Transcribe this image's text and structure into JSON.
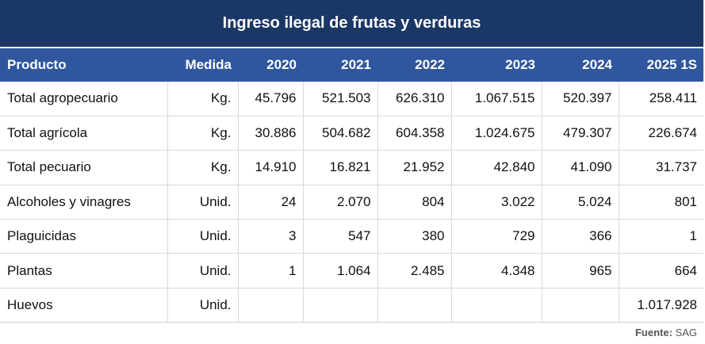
{
  "title": "Ingreso ilegal de frutas y verduras",
  "columns": [
    "Producto",
    "Medida",
    "2020",
    "2021",
    "2022",
    "2023",
    "2024",
    "2025 1S"
  ],
  "rows": [
    [
      "Total agropecuario",
      "Kg.",
      "45.796",
      "521.503",
      "626.310",
      "1.067.515",
      "520.397",
      "258.411"
    ],
    [
      "Total agrícola",
      "Kg.",
      "30.886",
      "504.682",
      "604.358",
      "1.024.675",
      "479.307",
      "226.674"
    ],
    [
      "Total pecuario",
      "Kg.",
      "14.910",
      "16.821",
      "21.952",
      "42.840",
      "41.090",
      "31.737"
    ],
    [
      "Alcoholes y vinagres",
      "Unid.",
      "24",
      "2.070",
      "804",
      "3.022",
      "5.024",
      "801"
    ],
    [
      "Plaguicidas",
      "Unid.",
      "3",
      "547",
      "380",
      "729",
      "366",
      "1"
    ],
    [
      "Plantas",
      "Unid.",
      "1",
      "1.064",
      "2.485",
      "4.348",
      "965",
      "664"
    ],
    [
      "Huevos",
      "Unid.",
      "",
      "",
      "",
      "",
      "",
      "1.017.928"
    ]
  ],
  "footer": {
    "label": "Fuente:",
    "source": "SAG"
  },
  "colors": {
    "title_bg": "#1b3766",
    "header_bg": "#30579d"
  }
}
